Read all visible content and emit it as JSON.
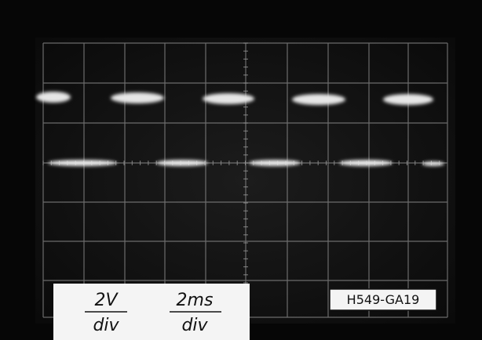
{
  "scale_labels": [
    {
      "numerator": "2V",
      "denominator": "div"
    },
    {
      "numerator": "2ms",
      "denominator": "div"
    }
  ],
  "figure_id": "H549-GA19"
}
